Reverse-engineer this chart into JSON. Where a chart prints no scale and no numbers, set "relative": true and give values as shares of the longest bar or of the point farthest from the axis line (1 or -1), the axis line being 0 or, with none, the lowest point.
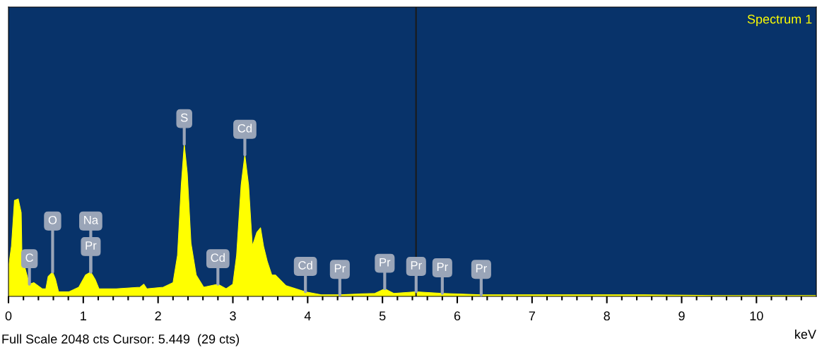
{
  "chart_data": {
    "type": "area",
    "title": "Spectrum 1",
    "xlabel": "keV",
    "relative": true,
    "x": [
      0.0,
      0.04,
      0.08,
      0.13,
      0.17,
      0.18,
      0.23,
      0.28,
      0.34,
      0.45,
      0.5,
      0.53,
      0.59,
      0.63,
      0.67,
      0.81,
      0.94,
      1.03,
      1.1,
      1.16,
      1.21,
      1.44,
      1.76,
      1.81,
      1.85,
      2.07,
      2.2,
      2.26,
      2.31,
      2.35,
      2.39,
      2.44,
      2.51,
      2.61,
      2.8,
      2.91,
      3.0,
      3.05,
      3.11,
      3.16,
      3.21,
      3.26,
      3.32,
      3.37,
      3.41,
      3.46,
      3.52,
      3.57,
      3.71,
      3.97,
      4.18,
      4.43,
      4.9,
      5.03,
      5.15,
      5.45,
      5.8,
      6.32,
      7.5,
      8.5,
      9.5,
      10.8
    ],
    "series": [
      {
        "color": "#ffff00",
        "values": [
          0.19,
          0.33,
          0.63,
          0.64,
          0.55,
          0.27,
          0.17,
          0.08,
          0.09,
          0.05,
          0.05,
          0.13,
          0.16,
          0.11,
          0.03,
          0.03,
          0.06,
          0.14,
          0.16,
          0.11,
          0.05,
          0.05,
          0.06,
          0.08,
          0.05,
          0.06,
          0.09,
          0.27,
          0.73,
          1.0,
          0.81,
          0.35,
          0.14,
          0.06,
          0.08,
          0.05,
          0.08,
          0.27,
          0.73,
          0.93,
          0.73,
          0.33,
          0.42,
          0.45,
          0.33,
          0.23,
          0.14,
          0.14,
          0.07,
          0.03,
          0.01,
          0.01,
          0.02,
          0.05,
          0.02,
          0.03,
          0.02,
          0.01,
          0.01,
          0.01,
          0.005,
          0.005
        ]
      }
    ],
    "xlim": [
      0,
      10.8
    ],
    "xticks": [
      0,
      {
        "value": 0.2,
        "label": null
      },
      {
        "value": 0.4,
        "label": null
      },
      {
        "value": 0.6,
        "label": null
      },
      {
        "value": 0.8,
        "label": null
      },
      1,
      {
        "value": 1.2,
        "label": null
      },
      {
        "value": 1.4,
        "label": null
      },
      {
        "value": 1.6,
        "label": null
      },
      {
        "value": 1.8,
        "label": null
      },
      2,
      {
        "value": 2.2,
        "label": null
      },
      {
        "value": 2.4,
        "label": null
      },
      {
        "value": 2.6,
        "label": null
      },
      {
        "value": 2.8,
        "label": null
      },
      3,
      {
        "value": 3.2,
        "label": null
      },
      {
        "value": 3.4,
        "label": null
      },
      {
        "value": 3.6,
        "label": null
      },
      {
        "value": 3.8,
        "label": null
      },
      4,
      {
        "value": 4.2,
        "label": null
      },
      {
        "value": 4.4,
        "label": null
      },
      {
        "value": 4.6,
        "label": null
      },
      {
        "value": 4.8,
        "label": null
      },
      5,
      {
        "value": 5.2,
        "label": null
      },
      {
        "value": 5.4,
        "label": null
      },
      {
        "value": 5.6,
        "label": null
      },
      {
        "value": 5.8,
        "label": null
      },
      6,
      {
        "value": 6.2,
        "label": null
      },
      {
        "value": 6.4,
        "label": null
      },
      {
        "value": 6.6,
        "label": null
      },
      {
        "value": 6.8,
        "label": null
      },
      7,
      {
        "value": 7.2,
        "label": null
      },
      {
        "value": 7.4,
        "label": null
      },
      {
        "value": 7.6,
        "label": null
      },
      {
        "value": 7.8,
        "label": null
      },
      8,
      {
        "value": 8.2,
        "label": null
      },
      {
        "value": 8.4,
        "label": null
      },
      {
        "value": 8.6,
        "label": null
      },
      {
        "value": 8.8,
        "label": null
      },
      9,
      {
        "value": 9.2,
        "label": null
      },
      {
        "value": 9.4,
        "label": null
      },
      {
        "value": 9.6,
        "label": null
      },
      {
        "value": 9.8,
        "label": null
      },
      10,
      {
        "value": 10.2,
        "label": null
      },
      {
        "value": 10.4,
        "label": null
      },
      {
        "value": 10.6,
        "label": null
      }
    ],
    "tick_labels": "x",
    "ref_lines": [
      {
        "axis": "x",
        "value": 5.449,
        "color": "#1a1a1a"
      }
    ],
    "annotations": [
      {
        "text": "C",
        "x": 0.28,
        "y": 0.08
      },
      {
        "text": "O",
        "x": 0.59,
        "y": 0.16
      },
      {
        "text": "Pr",
        "x": 1.1,
        "y": 0.16
      },
      {
        "text": "Na",
        "x": 1.1,
        "y": 0.16
      },
      {
        "text": "S",
        "x": 2.35,
        "y": 1.0
      },
      {
        "text": "Cd",
        "x": 2.8,
        "y": 0.08
      },
      {
        "text": "Cd",
        "x": 3.16,
        "y": 0.93
      },
      {
        "text": "Cd",
        "x": 3.97,
        "y": 0.03
      },
      {
        "text": "Pr",
        "x": 4.43,
        "y": 0.01
      },
      {
        "text": "Pr",
        "x": 5.03,
        "y": 0.05
      },
      {
        "text": "Pr",
        "x": 5.45,
        "y": 0.03
      },
      {
        "text": "Pr",
        "x": 5.8,
        "y": 0.02
      },
      {
        "text": "Pr",
        "x": 6.32,
        "y": 0.01
      },
      "Full Scale 2048 cts Cursor: 5.449  (29 cts)"
    ]
  }
}
